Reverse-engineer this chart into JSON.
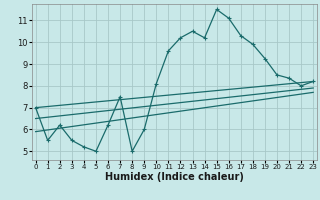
{
  "xlabel": "Humidex (Indice chaleur)",
  "line_color": "#1a6b6b",
  "bg_color": "#c8e8e8",
  "grid_color": "#a8c8c8",
  "curve_points": [
    [
      0,
      7.0
    ],
    [
      1,
      5.5
    ],
    [
      2,
      6.2
    ],
    [
      3,
      5.5
    ],
    [
      4,
      5.2
    ],
    [
      5,
      5.0
    ],
    [
      6,
      6.2
    ],
    [
      7,
      7.5
    ],
    [
      8,
      5.0
    ],
    [
      9,
      6.0
    ],
    [
      10,
      8.1
    ],
    [
      11,
      9.6
    ],
    [
      12,
      10.2
    ],
    [
      13,
      10.5
    ],
    [
      14,
      10.2
    ],
    [
      15,
      11.5
    ],
    [
      16,
      11.1
    ],
    [
      17,
      10.3
    ],
    [
      18,
      9.9
    ],
    [
      19,
      9.25
    ],
    [
      20,
      8.5
    ],
    [
      21,
      8.35
    ],
    [
      22,
      8.0
    ],
    [
      23,
      8.2
    ]
  ],
  "line1_points": [
    [
      0,
      7.0
    ],
    [
      23,
      8.2
    ]
  ],
  "line2_points": [
    [
      0,
      6.5
    ],
    [
      23,
      7.9
    ]
  ],
  "line3_points": [
    [
      0,
      5.9
    ],
    [
      23,
      7.7
    ]
  ],
  "xlim": [
    -0.3,
    23.3
  ],
  "ylim": [
    4.6,
    11.75
  ],
  "xticks": [
    0,
    1,
    2,
    3,
    4,
    5,
    6,
    7,
    8,
    9,
    10,
    11,
    12,
    13,
    14,
    15,
    16,
    17,
    18,
    19,
    20,
    21,
    22,
    23
  ],
  "yticks": [
    5,
    6,
    7,
    8,
    9,
    10,
    11
  ],
  "xlabel_fontsize": 7,
  "tick_fontsize": 5.5,
  "linewidth": 0.9,
  "marker_size": 3.0
}
